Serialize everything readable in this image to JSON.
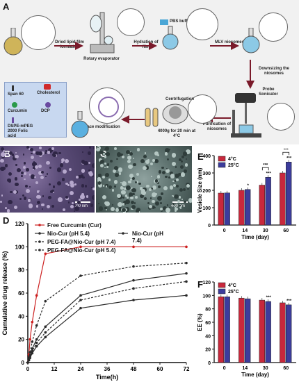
{
  "panels": {
    "a": "A",
    "b": "B",
    "c": "C",
    "d": "D",
    "e": "E",
    "f": "F"
  },
  "scheme": {
    "steps": [
      "Dried lipid film formation",
      "Rotary evaporator",
      "PBS buffer",
      "Hydration of film",
      "MLV niosomes",
      "Downsizing the niosomes",
      "Probe Sonicator",
      "Purification of niosomes",
      "Centrifugation",
      "4000g for 20 min at 4°C",
      "Surface modification"
    ],
    "legend": [
      "Span 60",
      "Cholesterol",
      "Curcumin",
      "DCP",
      "DSPE-mPEG 2000 Folic acid"
    ]
  },
  "sem": {
    "b_scale": "400 nm",
    "c_scale": "400 nm"
  },
  "chart_data": [
    {
      "type": "line",
      "panel": "D",
      "xlabel": "Time(h)",
      "ylabel": "Cumulative drug release (%)",
      "xlim": [
        0,
        72
      ],
      "ylim": [
        0,
        120
      ],
      "xticks": [
        0,
        12,
        24,
        36,
        48,
        60,
        72
      ],
      "yticks": [
        0,
        20,
        40,
        60,
        80,
        100,
        120
      ],
      "x": [
        0,
        0.5,
        1,
        2,
        4,
        8,
        24,
        48,
        72
      ],
      "series": [
        {
          "name": "Free Curcumin (Cur)",
          "color": "#cc1f1f",
          "dash": "",
          "values": [
            0,
            7,
            20,
            35,
            58,
            94,
            100,
            100,
            100
          ]
        },
        {
          "name": "Nio-Cur (pH 5.4)",
          "color": "#2a2a2a",
          "dash": "",
          "values": [
            0,
            3,
            6,
            12,
            20,
            31,
            58,
            71,
            77
          ]
        },
        {
          "name": "Nio-Cur (pH 7.4)",
          "color": "#2a2a2a",
          "dash": "",
          "values": [
            0,
            2,
            4,
            8,
            14,
            22,
            47,
            54,
            58
          ]
        },
        {
          "name": "PEG-FA@Nio-Cur (pH 7.4)",
          "color": "#2a2a2a",
          "dash": "3,2",
          "values": [
            0,
            2,
            5,
            10,
            17,
            26,
            54,
            64,
            70
          ]
        },
        {
          "name": "PEG-FA@Nio-Cur (pH 5.4)",
          "color": "#2a2a2a",
          "dash": "3,2",
          "values": [
            0,
            4,
            9,
            18,
            32,
            53,
            75,
            83,
            86
          ]
        }
      ]
    },
    {
      "type": "bar",
      "panel": "E",
      "xlabel": "Time (day)",
      "ylabel": "Vesicle Size (nm)",
      "categories": [
        "0",
        "14",
        "30",
        "60"
      ],
      "ylim": [
        0,
        400
      ],
      "yticks": [
        0,
        100,
        200,
        300,
        400
      ],
      "legend": "top-left",
      "series": [
        {
          "name": "4°C",
          "color": "#c8283c",
          "values": [
            184,
            200,
            230,
            300
          ]
        },
        {
          "name": "25°C",
          "color": "#3c3c9c",
          "values": [
            185,
            205,
            275,
            363
          ]
        }
      ],
      "annotations": {
        "stars": [
          "",
          "*",
          "***",
          "***"
        ],
        "brackets": [
          "***",
          "***"
        ]
      }
    },
    {
      "type": "bar",
      "panel": "F",
      "xlabel": "Time (day)",
      "ylabel": "EE (%)",
      "categories": [
        "0",
        "14",
        "30",
        "60"
      ],
      "ylim": [
        0,
        120
      ],
      "yticks": [
        0,
        20,
        40,
        60,
        80,
        100,
        120
      ],
      "legend": "top-left",
      "series": [
        {
          "name": "4°C",
          "color": "#c8283c",
          "values": [
            98,
            96,
            93,
            89
          ]
        },
        {
          "name": "25°C",
          "color": "#3c3c9c",
          "values": [
            98,
            95,
            91,
            86
          ]
        }
      ],
      "annotations": {
        "stars": [
          "",
          "",
          "***",
          "***"
        ]
      }
    }
  ]
}
